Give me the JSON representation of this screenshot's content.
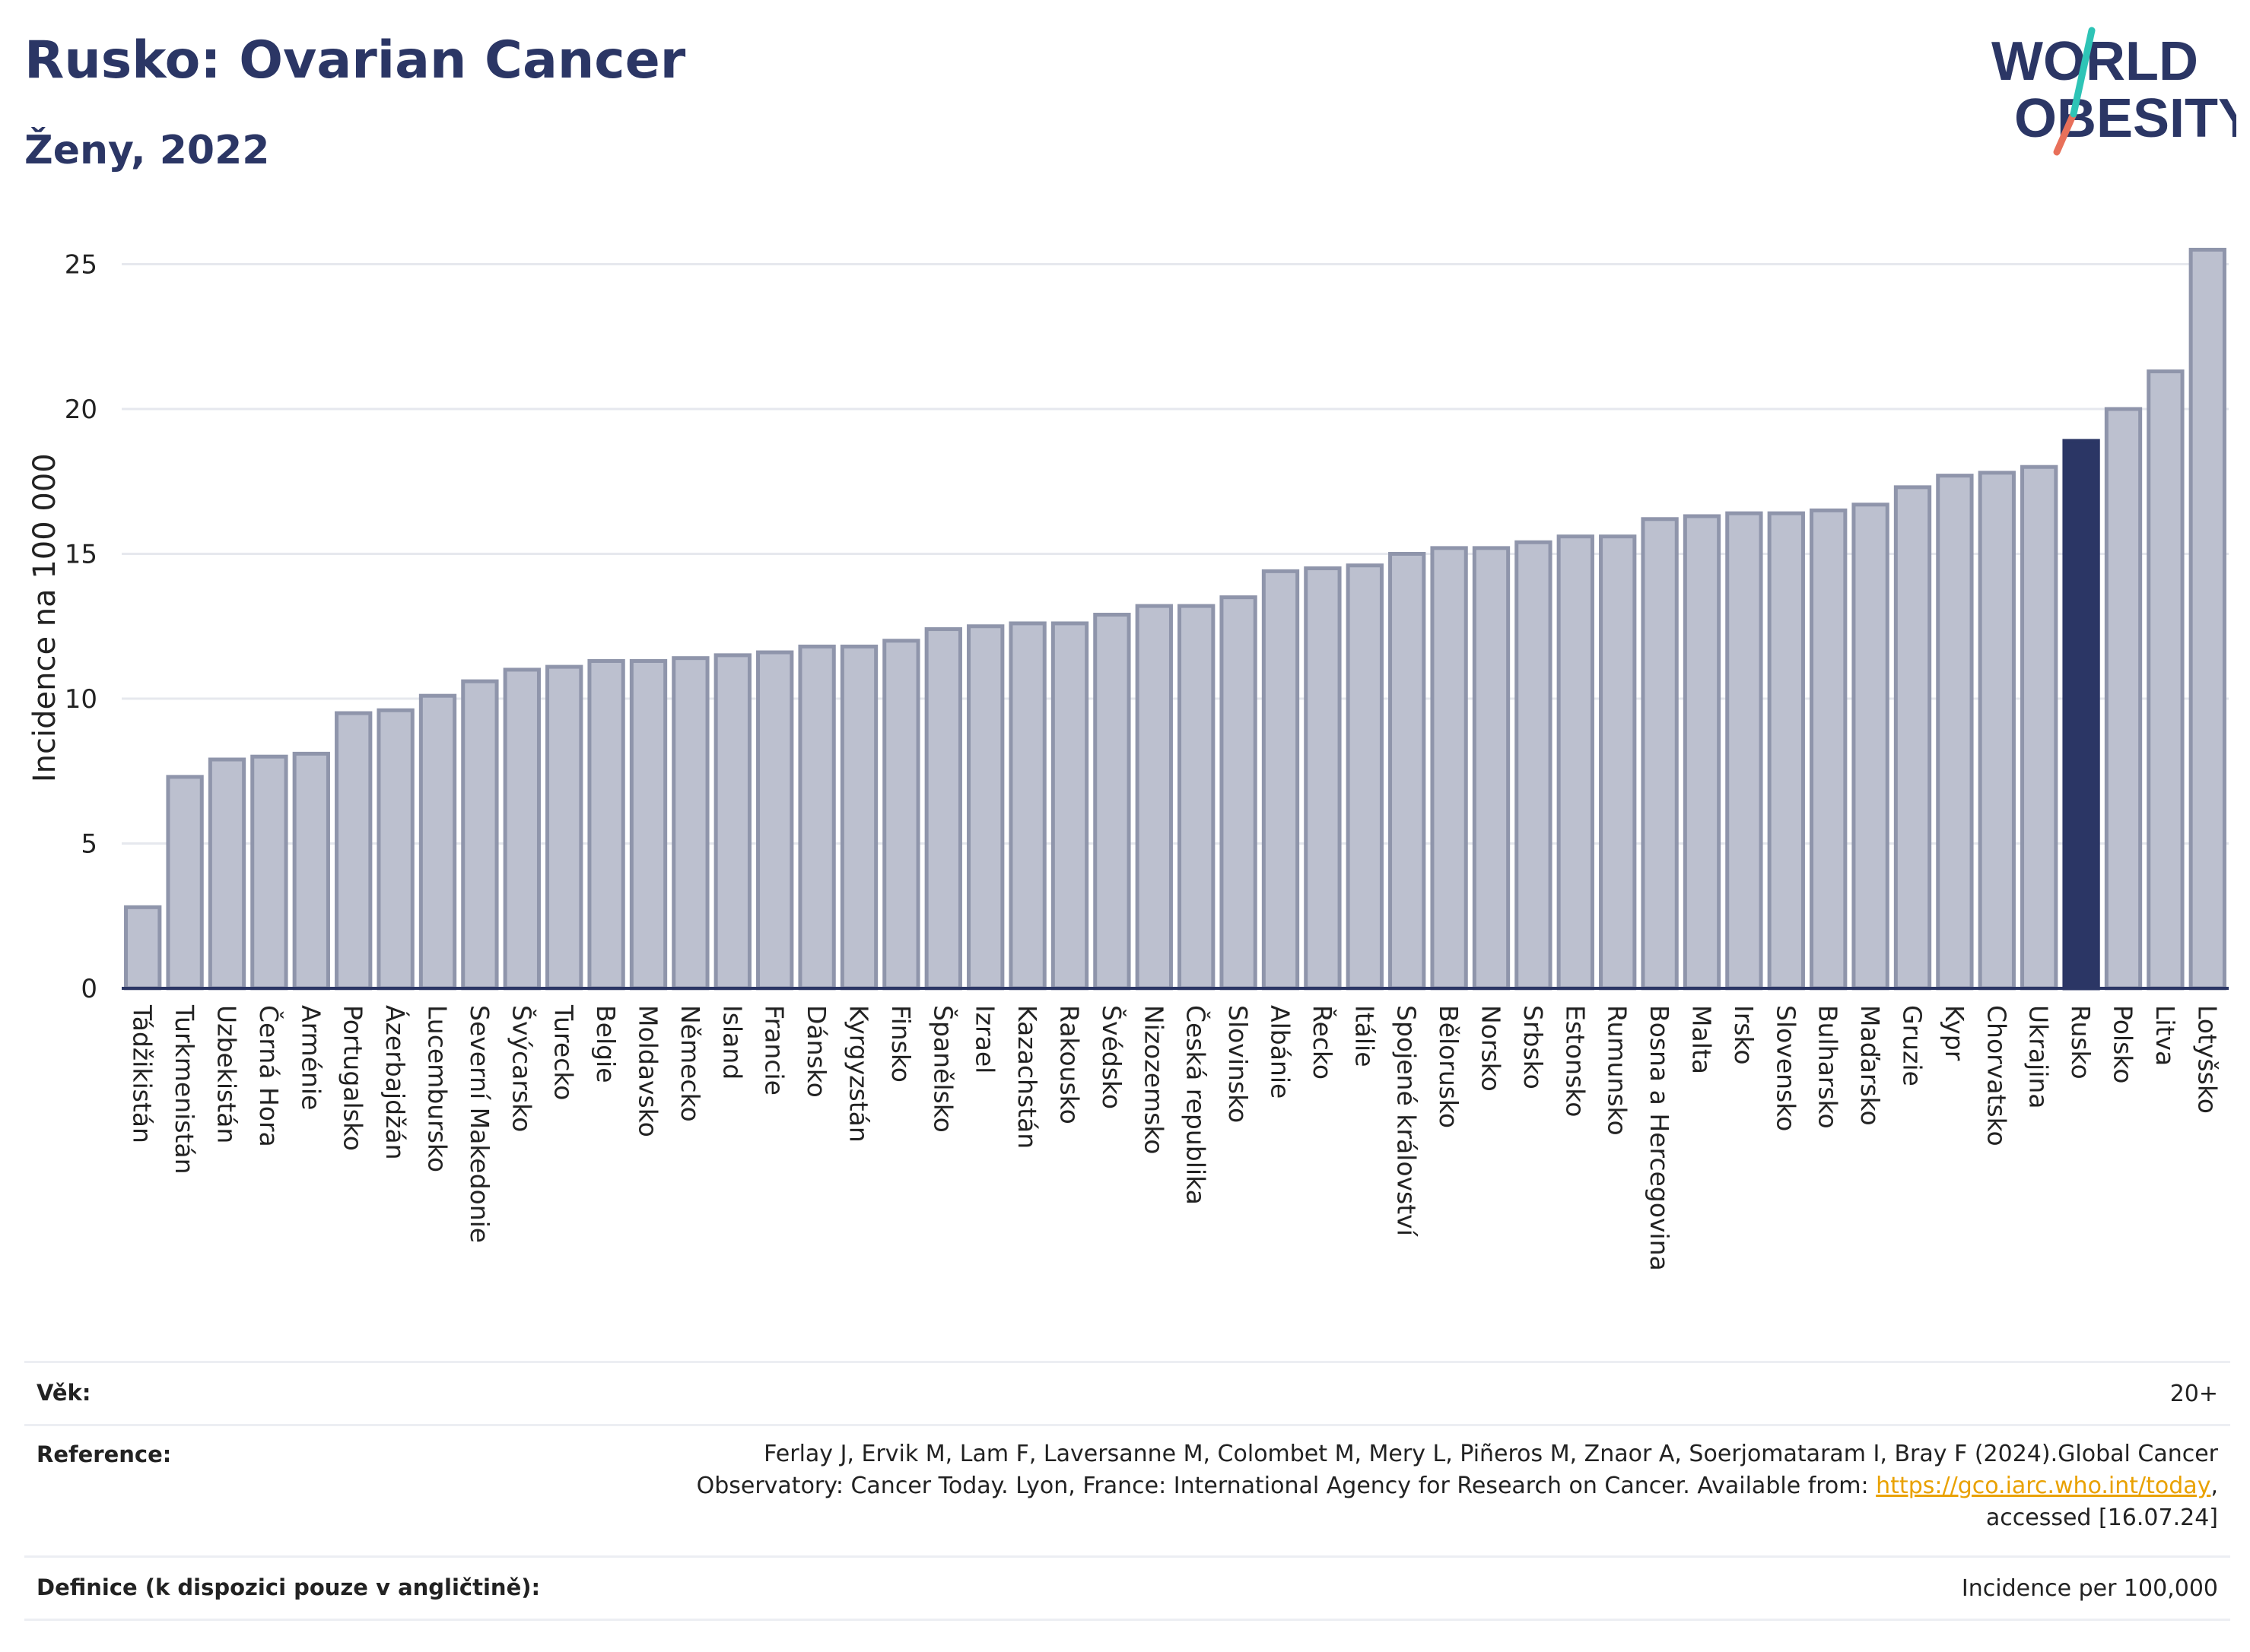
{
  "header": {
    "title": "Rusko: Ovarian Cancer",
    "subtitle": "Ženy, 2022",
    "logo_text_top": "WORLD",
    "logo_text_bottom": "OBESITY"
  },
  "colors": {
    "title": "#2b3665",
    "bar": "#bcc0cf",
    "bar_stroke": "#8f95ab",
    "highlight": "#2b3665",
    "logo_teal": "#2ec4b6",
    "logo_coral": "#e8705a"
  },
  "chart_data": {
    "type": "bar",
    "ylabel": "Incidence na 100 000",
    "ylim": [
      0,
      26
    ],
    "yticks": [
      0,
      5,
      10,
      15,
      20,
      25
    ],
    "grid": true,
    "highlight_category": "Rusko",
    "categories": [
      "Tádžikistán",
      "Turkmenistán",
      "Uzbekistán",
      "Černá Hora",
      "Arménie",
      "Portugalsko",
      "Ázerbajdžán",
      "Lucembursko",
      "Severní Makedonie",
      "Švýcarsko",
      "Turecko",
      "Belgie",
      "Moldavsko",
      "Německo",
      "Island",
      "Francie",
      "Dánsko",
      "Kyrgyzstán",
      "Finsko",
      "Španělsko",
      "Izrael",
      "Kazachstán",
      "Rakousko",
      "Švédsko",
      "Nizozemsko",
      "Česká republika",
      "Slovinsko",
      "Albánie",
      "Řecko",
      "Itálie",
      "Spojené království",
      "Bělorusko",
      "Norsko",
      "Srbsko",
      "Estonsko",
      "Rumunsko",
      "Bosna a Hercegovina",
      "Malta",
      "Irsko",
      "Slovensko",
      "Bulharsko",
      "Maďarsko",
      "Gruzie",
      "Kypr",
      "Chorvatsko",
      "Ukrajina",
      "Rusko",
      "Polsko",
      "Litva",
      "Lotyšsko"
    ],
    "values": [
      2.8,
      7.3,
      7.9,
      8.0,
      8.1,
      9.5,
      9.6,
      10.1,
      10.6,
      11.0,
      11.1,
      11.3,
      11.3,
      11.4,
      11.5,
      11.6,
      11.8,
      11.8,
      12.0,
      12.4,
      12.5,
      12.6,
      12.6,
      12.9,
      13.2,
      13.2,
      13.5,
      14.4,
      14.5,
      14.6,
      15.0,
      15.2,
      15.2,
      15.4,
      15.6,
      15.6,
      16.2,
      16.3,
      16.4,
      16.4,
      16.5,
      16.7,
      17.3,
      17.7,
      17.8,
      18.0,
      18.9,
      20.0,
      21.3,
      25.5
    ]
  },
  "meta": {
    "age_label": "Věk:",
    "age_value": "20+",
    "reference_label": "Reference:",
    "reference_line1": "Ferlay J, Ervik M, Lam F, Laversanne M, Colombet M, Mery L, Piñeros M, Znaor A, Soerjomataram I, Bray F (2024).Global Cancer",
    "reference_line2_prefix": "Observatory: Cancer Today. Lyon, France: International Agency for Research on Cancer. Available from: ",
    "reference_link": "https://gco.iarc.who.int/today",
    "reference_line2_suffix": ",",
    "reference_line3": "accessed [16.07.24]",
    "definition_label": "Definice (k dispozici pouze v angličtině):",
    "definition_value": "Incidence per 100,000"
  }
}
